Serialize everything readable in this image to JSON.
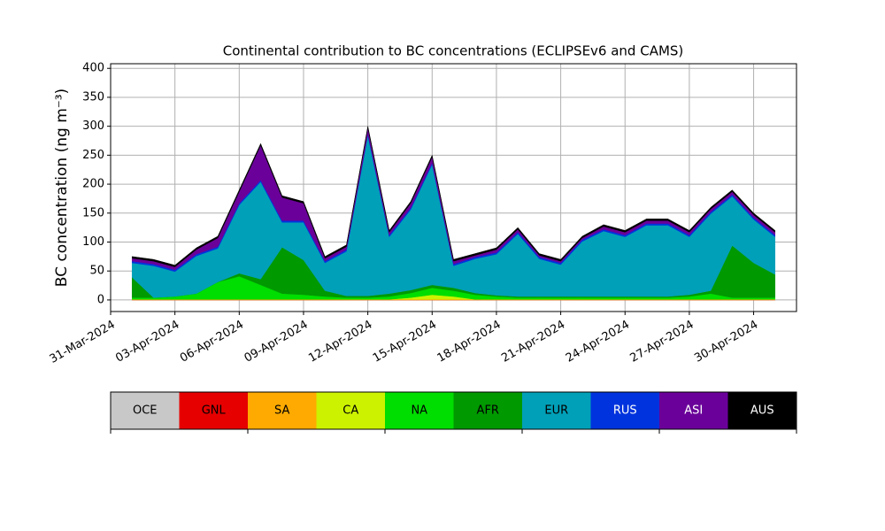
{
  "chart_data": {
    "type": "stacked_area",
    "title": "Continental contribution to BC concentrations (ECLIPSEv6 and CAMS)",
    "y_label": "BC concentration (ng m⁻³)",
    "x": [
      "2024-04-01",
      "2024-04-02",
      "2024-04-03",
      "2024-04-04",
      "2024-04-05",
      "2024-04-06",
      "2024-04-07",
      "2024-04-08",
      "2024-04-09",
      "2024-04-10",
      "2024-04-11",
      "2024-04-12",
      "2024-04-13",
      "2024-04-14",
      "2024-04-15",
      "2024-04-16",
      "2024-04-17",
      "2024-04-18",
      "2024-04-19",
      "2024-04-20",
      "2024-04-21",
      "2024-04-22",
      "2024-04-23",
      "2024-04-24",
      "2024-04-25",
      "2024-04-26",
      "2024-04-27",
      "2024-04-28",
      "2024-04-29",
      "2024-04-30",
      "2024-05-01"
    ],
    "xlim": [
      "2024-03-31",
      "2024-05-02"
    ],
    "xticks": [
      {
        "value": "2024-03-31",
        "label": "31-Mar-2024"
      },
      {
        "value": "2024-04-03",
        "label": "03-Apr-2024"
      },
      {
        "value": "2024-04-06",
        "label": "06-Apr-2024"
      },
      {
        "value": "2024-04-09",
        "label": "09-Apr-2024"
      },
      {
        "value": "2024-04-12",
        "label": "12-Apr-2024"
      },
      {
        "value": "2024-04-15",
        "label": "15-Apr-2024"
      },
      {
        "value": "2024-04-18",
        "label": "18-Apr-2024"
      },
      {
        "value": "2024-04-21",
        "label": "21-Apr-2024"
      },
      {
        "value": "2024-04-24",
        "label": "24-Apr-2024"
      },
      {
        "value": "2024-04-27",
        "label": "27-Apr-2024"
      },
      {
        "value": "2024-04-30",
        "label": "30-Apr-2024"
      }
    ],
    "ylim": [
      -20,
      408
    ],
    "yticks": [
      0,
      50,
      100,
      150,
      200,
      250,
      300,
      350,
      400
    ],
    "grid": true,
    "series": [
      {
        "name": "OCE",
        "color": "#c8c8c8",
        "values": [
          0,
          0,
          0,
          0,
          0,
          0,
          0,
          0,
          0,
          0,
          0,
          0,
          0,
          0,
          0,
          0,
          0,
          0,
          0,
          0,
          0,
          0,
          0,
          0,
          0,
          0,
          0,
          0,
          0,
          0,
          0
        ]
      },
      {
        "name": "GNL",
        "color": "#e60000",
        "values": [
          0,
          0,
          0,
          0,
          0,
          0,
          0,
          0,
          0,
          0,
          0,
          0,
          0,
          0,
          0,
          0,
          0,
          0,
          0,
          0,
          0,
          0,
          0,
          0,
          0,
          0,
          0,
          0,
          0,
          0,
          0
        ]
      },
      {
        "name": "SA",
        "color": "#ffaa00",
        "values": [
          1,
          1,
          1,
          1,
          1,
          1,
          1,
          1,
          1,
          1,
          1,
          1,
          1,
          1,
          1,
          1,
          1,
          1,
          1,
          1,
          1,
          1,
          1,
          1,
          1,
          1,
          1,
          1,
          1,
          1,
          1
        ]
      },
      {
        "name": "CA",
        "color": "#ccf200",
        "values": [
          0,
          0,
          0,
          0,
          0,
          0,
          0,
          0,
          0,
          0,
          0,
          0,
          0,
          3,
          8,
          5,
          0,
          0,
          0,
          0,
          0,
          0,
          0,
          0,
          0,
          0,
          0,
          0,
          0,
          0,
          0
        ]
      },
      {
        "name": "NA",
        "color": "#00dd00",
        "values": [
          3,
          3,
          5,
          10,
          30,
          40,
          25,
          10,
          8,
          5,
          3,
          3,
          5,
          8,
          12,
          10,
          8,
          5,
          3,
          3,
          3,
          3,
          3,
          3,
          3,
          3,
          5,
          10,
          3,
          3,
          3
        ]
      },
      {
        "name": "AFR",
        "color": "#009900",
        "values": [
          35,
          0,
          0,
          0,
          0,
          5,
          10,
          80,
          60,
          10,
          3,
          3,
          5,
          5,
          5,
          5,
          3,
          2,
          2,
          2,
          2,
          2,
          2,
          2,
          2,
          2,
          3,
          5,
          90,
          60,
          40
        ]
      },
      {
        "name": "EUR",
        "color": "#00a0b8",
        "values": [
          25,
          55,
          43,
          65,
          58,
          118,
          168,
          43,
          65,
          48,
          77,
          277,
          98,
          139,
          208,
          38,
          59,
          71,
          108,
          65,
          55,
          95,
          113,
          103,
          123,
          123,
          100,
          133,
          85,
          75,
          65
        ]
      },
      {
        "name": "RUS",
        "color": "#0033dd",
        "values": [
          3,
          3,
          3,
          3,
          3,
          3,
          3,
          3,
          3,
          3,
          3,
          3,
          3,
          3,
          3,
          3,
          3,
          3,
          3,
          3,
          3,
          3,
          3,
          3,
          3,
          3,
          3,
          3,
          3,
          3,
          3
        ]
      },
      {
        "name": "ASI",
        "color": "#6a0099",
        "values": [
          5,
          5,
          5,
          8,
          15,
          20,
          60,
          40,
          30,
          5,
          5,
          10,
          5,
          8,
          10,
          5,
          3,
          5,
          5,
          3,
          3,
          3,
          5,
          5,
          5,
          5,
          5,
          5,
          5,
          5,
          5
        ]
      },
      {
        "name": "AUS",
        "color": "#000000",
        "values": [
          3,
          3,
          3,
          3,
          3,
          3,
          3,
          3,
          3,
          3,
          3,
          3,
          3,
          3,
          3,
          3,
          3,
          3,
          3,
          3,
          3,
          3,
          3,
          3,
          3,
          3,
          3,
          3,
          3,
          3,
          3
        ]
      }
    ]
  }
}
